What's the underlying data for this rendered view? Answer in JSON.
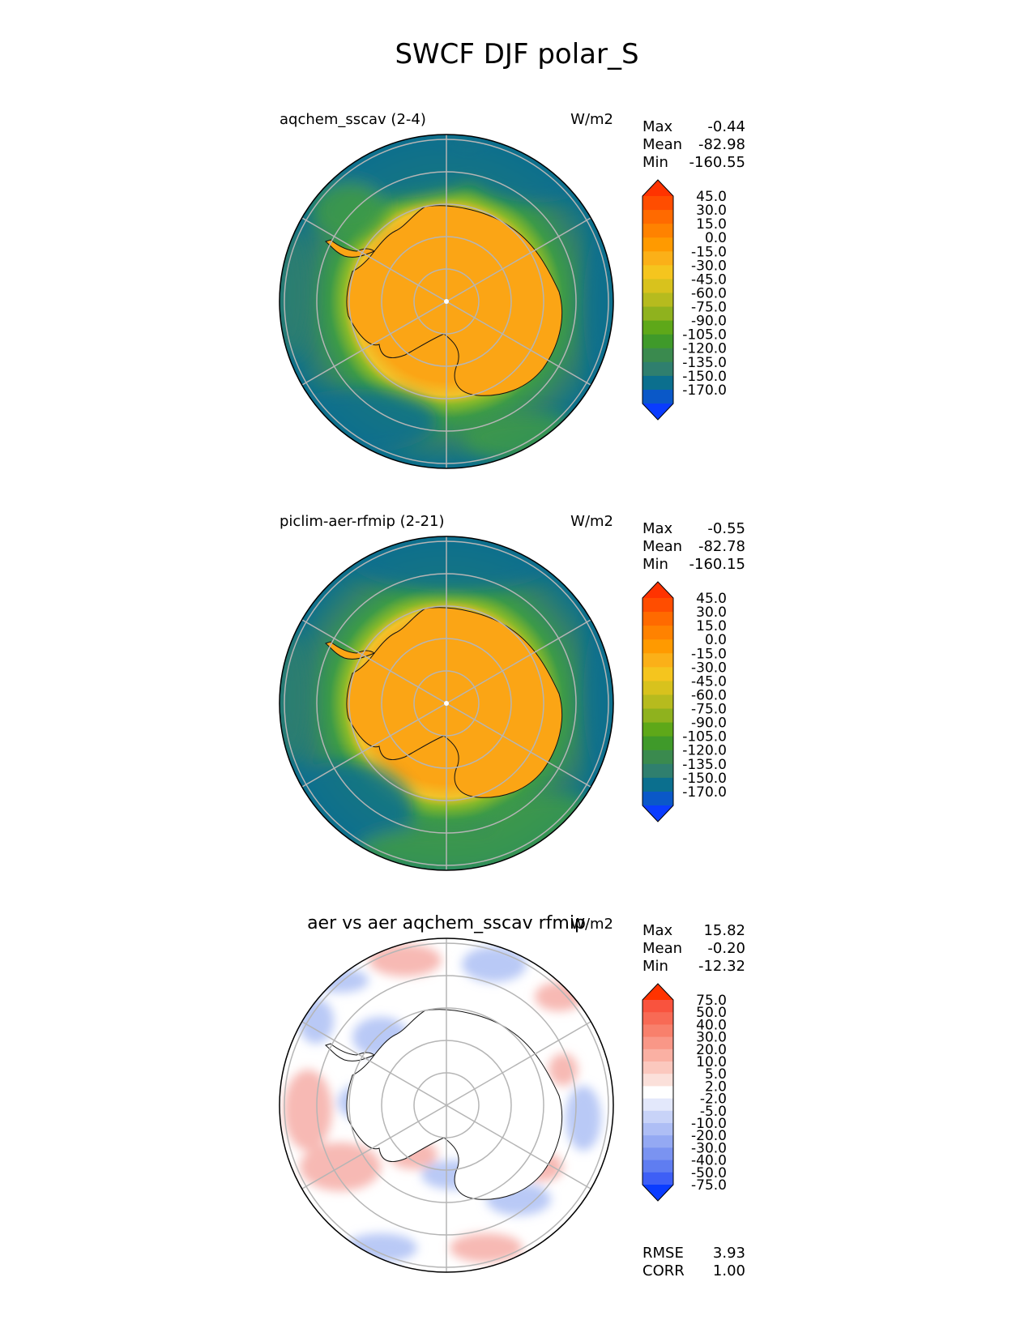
{
  "figure": {
    "title": "SWCF DJF polar_S",
    "colors": {
      "ocean_deep": "#0b6f8e",
      "ocean_teal": "#2f7f6e",
      "ocean_green": "#3c9a48",
      "ice_edge": "#86b92a",
      "land_yellow": "#f2c12a",
      "land_orange": "#fba515",
      "diff_blue": "#b9c9f6",
      "diff_red": "#f7b9b4",
      "grid": "#b5b5b5"
    }
  },
  "chart_data": [
    {
      "type": "heatmap",
      "projection": "south-polar-stereographic",
      "left_title": "aqchem_sscav (2-4)",
      "units": "W/m2",
      "stats": {
        "max_label": "Max",
        "max": "-0.44",
        "mean_label": "Mean",
        "mean": "-82.98",
        "min_label": "Min",
        "min": "-160.55"
      },
      "levels": [
        "45.0",
        "30.0",
        "15.0",
        "0.0",
        "-15.0",
        "-30.0",
        "-45.0",
        "-60.0",
        "-75.0",
        "-90.0",
        "-105.0",
        "-120.0",
        "-135.0",
        "-150.0",
        "-170.0"
      ],
      "colorbar_colors": [
        "#ff3300",
        "#ff4d00",
        "#ff6a00",
        "#ff8200",
        "#ff9a00",
        "#fbb018",
        "#f5c51e",
        "#d8c21d",
        "#b6bb1e",
        "#8fb21e",
        "#5ea819",
        "#3f9a2a",
        "#3a8a4e",
        "#2f7f6e",
        "#0b6f8e",
        "#0a58c8",
        "#0a3cff"
      ],
      "colorbar_ends": "both"
    },
    {
      "type": "heatmap",
      "projection": "south-polar-stereographic",
      "left_title": "piclim-aer-rfmip (2-21)",
      "units": "W/m2",
      "stats": {
        "max_label": "Max",
        "max": "-0.55",
        "mean_label": "Mean",
        "mean": "-82.78",
        "min_label": "Min",
        "min": "-160.15"
      },
      "levels": [
        "45.0",
        "30.0",
        "15.0",
        "0.0",
        "-15.0",
        "-30.0",
        "-45.0",
        "-60.0",
        "-75.0",
        "-90.0",
        "-105.0",
        "-120.0",
        "-135.0",
        "-150.0",
        "-170.0"
      ],
      "colorbar_colors": [
        "#ff3300",
        "#ff4d00",
        "#ff6a00",
        "#ff8200",
        "#ff9a00",
        "#fbb018",
        "#f5c51e",
        "#d8c21d",
        "#b6bb1e",
        "#8fb21e",
        "#5ea819",
        "#3f9a2a",
        "#3a8a4e",
        "#2f7f6e",
        "#0b6f8e",
        "#0a58c8",
        "#0a3cff"
      ],
      "colorbar_ends": "both"
    },
    {
      "type": "heatmap",
      "projection": "south-polar-stereographic",
      "center_title": "aer vs aer aqchem_sscav rfmip",
      "units": "W/m2",
      "stats": {
        "max_label": "Max",
        "max": "15.82",
        "mean_label": "Mean",
        "mean": "-0.20",
        "min_label": "Min",
        "min": "-12.32"
      },
      "levels": [
        "75.0",
        "50.0",
        "40.0",
        "30.0",
        "20.0",
        "10.0",
        "5.0",
        "2.0",
        "-2.0",
        "-5.0",
        "-10.0",
        "-20.0",
        "-30.0",
        "-40.0",
        "-50.0",
        "-75.0"
      ],
      "colorbar_colors": [
        "#ff3300",
        "#f9533e",
        "#f86a55",
        "#f8806c",
        "#f99787",
        "#fab0a3",
        "#fbc8be",
        "#fbe0da",
        "#ffffff",
        "#e3e8fb",
        "#c8d3f8",
        "#aebef5",
        "#94a9f3",
        "#7a93f1",
        "#5f7df1",
        "#3e5ff6",
        "#0a3cff"
      ],
      "colorbar_ends": "both",
      "metrics": {
        "rmse_label": "RMSE",
        "rmse": "3.93",
        "corr_label": "CORR",
        "corr": "1.00"
      }
    }
  ]
}
